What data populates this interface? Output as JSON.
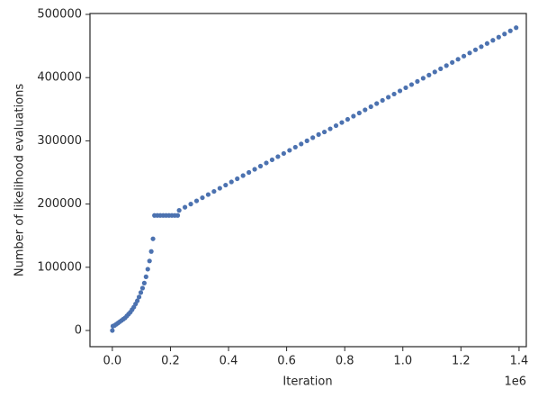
{
  "chart_data": {
    "type": "scatter",
    "xlabel": "Iteration",
    "ylabel": "Number of likelihood evaluations",
    "x_offset_label": "1e6",
    "color": "#4c72b0",
    "xlim": [
      -77000,
      1425000
    ],
    "ylim": [
      -25600,
      501400
    ],
    "xticks": [
      {
        "value": 0,
        "label": "0.0"
      },
      {
        "value": 200000,
        "label": "0.2"
      },
      {
        "value": 400000,
        "label": "0.4"
      },
      {
        "value": 600000,
        "label": "0.6"
      },
      {
        "value": 800000,
        "label": "0.8"
      },
      {
        "value": 1000000,
        "label": "1.0"
      },
      {
        "value": 1200000,
        "label": "1.2"
      },
      {
        "value": 1400000,
        "label": "1.4"
      }
    ],
    "yticks": [
      0,
      100000,
      200000,
      300000,
      400000,
      500000
    ],
    "x": [
      0,
      2000,
      8000,
      14000,
      20000,
      26000,
      32000,
      38000,
      44000,
      50000,
      56000,
      62000,
      68000,
      74000,
      80000,
      86000,
      92000,
      98000,
      104000,
      110000,
      116000,
      122000,
      128000,
      134000,
      140000,
      145000,
      155000,
      165000,
      175000,
      185000,
      195000,
      205000,
      215000,
      225000,
      230000,
      250000,
      270000,
      290000,
      310000,
      330000,
      350000,
      370000,
      390000,
      410000,
      430000,
      450000,
      470000,
      490000,
      510000,
      530000,
      550000,
      570000,
      590000,
      610000,
      630000,
      650000,
      670000,
      690000,
      710000,
      730000,
      750000,
      770000,
      790000,
      810000,
      830000,
      850000,
      870000,
      890000,
      910000,
      930000,
      950000,
      970000,
      990000,
      1010000,
      1030000,
      1050000,
      1070000,
      1090000,
      1110000,
      1130000,
      1150000,
      1170000,
      1190000,
      1210000,
      1230000,
      1250000,
      1270000,
      1290000,
      1310000,
      1330000,
      1350000,
      1370000,
      1390000
    ],
    "values": [
      0,
      7000,
      8000,
      10000,
      12000,
      14000,
      16000,
      18000,
      20000,
      23000,
      26000,
      29000,
      33000,
      37000,
      42000,
      47000,
      53000,
      60000,
      67000,
      75000,
      85000,
      97000,
      110000,
      125000,
      145000,
      182000,
      182000,
      182000,
      182000,
      182000,
      182000,
      182000,
      182000,
      182000,
      190000,
      195000,
      200000,
      205000,
      210000,
      215000,
      220000,
      225000,
      230000,
      235000,
      240000,
      245000,
      250000,
      255000,
      260000,
      265000,
      270000,
      275000,
      280000,
      285000,
      290000,
      295000,
      300000,
      305000,
      310000,
      314000,
      319000,
      324000,
      329000,
      334000,
      339000,
      344000,
      349000,
      354000,
      359000,
      364000,
      369000,
      374000,
      379000,
      384000,
      389000,
      394000,
      399000,
      404000,
      409000,
      414000,
      419000,
      424000,
      429000,
      434000,
      439000,
      444000,
      449000,
      454000,
      459000,
      464000,
      469000,
      474000,
      479000
    ]
  }
}
